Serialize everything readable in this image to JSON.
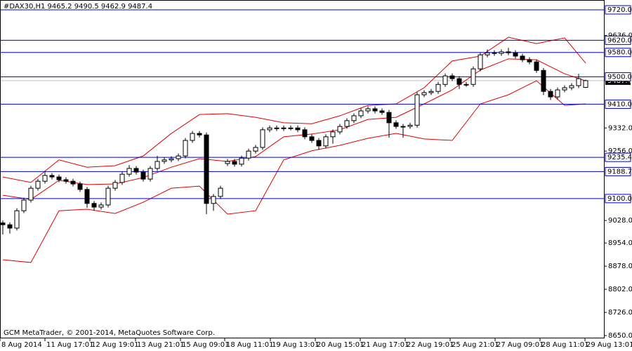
{
  "chart_data": {
    "type": "candlestick",
    "title": "#DAX30,H1  9465.2 9490.5 9462.9 9487.4",
    "credit": "GCM MetaTrader, © 2001-2014, MetaQuotes Software Corp.",
    "xlim": [
      -0.4,
      85.6
    ],
    "ylim": [
      8645.4,
      9752.3
    ],
    "xticks": [
      {
        "value": -0.4,
        "label": "8 Aug 2014"
      },
      {
        "value": 6,
        "label": "11 Aug 17:01"
      },
      {
        "value": 12.4,
        "label": "12 Aug 19:01"
      },
      {
        "value": 18.9,
        "label": "13 Aug 21:01"
      },
      {
        "value": 25.3,
        "label": "15 Aug 09:01"
      },
      {
        "value": 31.6,
        "label": "18 Aug 11:01"
      },
      {
        "value": 38.1,
        "label": "19 Aug 13:01"
      },
      {
        "value": 44.5,
        "label": "20 Aug 15:01"
      },
      {
        "value": 50.9,
        "label": "21 Aug 17:01"
      },
      {
        "value": 57.3,
        "label": "22 Aug 19:01"
      },
      {
        "value": 63.7,
        "label": "25 Aug 21:01"
      },
      {
        "value": 70.1,
        "label": "27 Aug 09:01"
      },
      {
        "value": 76.5,
        "label": "28 Aug 11:01"
      },
      {
        "value": 82.9,
        "label": "29 Aug 13:01"
      }
    ],
    "yticks": [
      {
        "value": 9636,
        "label": "9636.0"
      },
      {
        "value": 9332,
        "label": "9332.0"
      },
      {
        "value": 9256,
        "label": "9256.0"
      },
      {
        "value": 9028,
        "label": "9028.0"
      },
      {
        "value": 8954,
        "label": "8954.0"
      },
      {
        "value": 8878,
        "label": "8878.0"
      },
      {
        "value": 8802,
        "label": "8802.0"
      },
      {
        "value": 8726,
        "label": "8726.0"
      },
      {
        "value": 8650,
        "label": "8650.0"
      }
    ],
    "levels": [
      {
        "value": 9720,
        "label": "9720.0"
      },
      {
        "value": 9620,
        "label": "9620.0"
      },
      {
        "value": 9580,
        "label": "9580.0"
      },
      {
        "value": 9500,
        "label": "9500.0"
      },
      {
        "value": 9410,
        "label": "9410.0"
      },
      {
        "value": 9235.4,
        "label": "9235.4"
      },
      {
        "value": 9188.7,
        "label": "9188.7"
      },
      {
        "value": 9100,
        "label": "9100.0"
      }
    ],
    "level_color": "#0000cc",
    "current_price": 9487.4,
    "candle_color": "#000000",
    "open": [
      9020,
      9014,
      9003,
      9060,
      9095,
      9134,
      9157,
      9176,
      9171,
      9162,
      9157,
      9148,
      9130,
      9084,
      9072,
      9079,
      9134,
      9153,
      9180,
      9199,
      9187,
      9164,
      9199,
      9222,
      9227,
      9231,
      9240,
      9291,
      9314,
      9309,
      9084,
      9107,
      9215,
      9222,
      9213,
      9233,
      9256,
      9268,
      9326,
      9332,
      9330,
      9332,
      9332,
      9326,
      9303,
      9291,
      9273,
      9303,
      9319,
      9337,
      9356,
      9372,
      9388,
      9395,
      9388,
      9383,
      9349,
      9337,
      9337,
      9341,
      9441,
      9448,
      9452,
      9475,
      9503,
      9494,
      9475,
      9475,
      9526,
      9572,
      9579,
      9577,
      9582,
      9579,
      9568,
      9556,
      9549,
      9521,
      9452,
      9434,
      9457,
      9464,
      9471,
      9465.2
    ],
    "high": [
      9028,
      9022,
      9068,
      9103,
      9142,
      9165,
      9190,
      9184,
      9179,
      9170,
      9165,
      9156,
      9138,
      9092,
      9087,
      9142,
      9161,
      9188,
      9210,
      9207,
      9195,
      9207,
      9240,
      9235,
      9239,
      9248,
      9299,
      9322,
      9322,
      9317,
      9115,
      9142,
      9230,
      9230,
      9241,
      9264,
      9276,
      9334,
      9340,
      9340,
      9340,
      9340,
      9340,
      9334,
      9311,
      9299,
      9311,
      9327,
      9345,
      9364,
      9380,
      9396,
      9403,
      9403,
      9396,
      9391,
      9357,
      9345,
      9349,
      9449,
      9456,
      9460,
      9483,
      9511,
      9511,
      9502,
      9483,
      9534,
      9580,
      9590,
      9587,
      9590,
      9595,
      9587,
      9576,
      9564,
      9557,
      9529,
      9460,
      9465,
      9472,
      9479,
      9510,
      9490.5
    ],
    "low": [
      8982,
      8985,
      8995,
      9052,
      9087,
      9126,
      9149,
      9163,
      9154,
      9149,
      9140,
      9122,
      9070,
      9060,
      9064,
      9071,
      9126,
      9145,
      9172,
      9179,
      9156,
      9156,
      9191,
      9214,
      9219,
      9223,
      9232,
      9283,
      9301,
      9049,
      9060,
      9099,
      9207,
      9205,
      9205,
      9225,
      9248,
      9260,
      9318,
      9322,
      9322,
      9324,
      9318,
      9295,
      9283,
      9260,
      9265,
      9280,
      9311,
      9329,
      9348,
      9364,
      9380,
      9380,
      9375,
      9300,
      9329,
      9300,
      9329,
      9333,
      9433,
      9440,
      9444,
      9467,
      9486,
      9460,
      9467,
      9467,
      9518,
      9564,
      9569,
      9569,
      9571,
      9560,
      9548,
      9541,
      9513,
      9440,
      9424,
      9426,
      9449,
      9456,
      9463,
      9462.9
    ],
    "close": [
      9014,
      9003,
      9060,
      9095,
      9134,
      9157,
      9176,
      9171,
      9162,
      9157,
      9148,
      9130,
      9084,
      9072,
      9079,
      9134,
      9153,
      9180,
      9199,
      9187,
      9164,
      9199,
      9222,
      9227,
      9231,
      9240,
      9291,
      9314,
      9309,
      9084,
      9107,
      9134,
      9222,
      9213,
      9233,
      9256,
      9268,
      9326,
      9332,
      9330,
      9332,
      9332,
      9326,
      9303,
      9291,
      9273,
      9303,
      9319,
      9337,
      9356,
      9372,
      9388,
      9395,
      9388,
      9383,
      9349,
      9337,
      9337,
      9341,
      9441,
      9448,
      9452,
      9475,
      9503,
      9494,
      9475,
      9475,
      9526,
      9572,
      9579,
      9577,
      9582,
      9579,
      9568,
      9556,
      9549,
      9521,
      9452,
      9434,
      9457,
      9464,
      9471,
      9494,
      9487.4
    ],
    "series": [
      {
        "color": "#e00000",
        "x": [
          0,
          4,
          8,
          12,
          16,
          20,
          24,
          28,
          32,
          36,
          40,
          44,
          48,
          52,
          56,
          60,
          64,
          68,
          72,
          76,
          80,
          83
        ],
        "values": [
          9171,
          9153,
          9227,
          9203,
          9208,
          9240,
          9314,
          9376,
          9379,
          9367,
          9349,
          9346,
          9372,
          9406,
          9411,
          9464,
          9552,
          9568,
          9630,
          9609,
          9628,
          9545
        ]
      },
      {
        "color": "#e00000",
        "x": [
          0,
          4,
          8,
          12,
          16,
          20,
          24,
          28,
          32,
          36,
          40,
          44,
          48,
          52,
          56,
          60,
          64,
          68,
          72,
          76,
          80,
          83
        ],
        "values": [
          9111,
          9097,
          9160,
          9146,
          9148,
          9169,
          9203,
          9231,
          9222,
          9238,
          9303,
          9312,
          9326,
          9360,
          9367,
          9411,
          9457,
          9522,
          9559,
          9556,
          9510,
          9487
        ]
      },
      {
        "color": "#e00000",
        "x": [
          0,
          4,
          8,
          12,
          16,
          20,
          24,
          28,
          32,
          36,
          40,
          44,
          48,
          52,
          56,
          60,
          64,
          68,
          72,
          76,
          80,
          83
        ],
        "values": [
          8899,
          8890,
          9060,
          9065,
          9051,
          9088,
          9134,
          9141,
          9049,
          9060,
          9227,
          9257,
          9275,
          9298,
          9314,
          9296,
          9291,
          9411,
          9441,
          9487,
          9406,
          9411
        ]
      }
    ]
  }
}
